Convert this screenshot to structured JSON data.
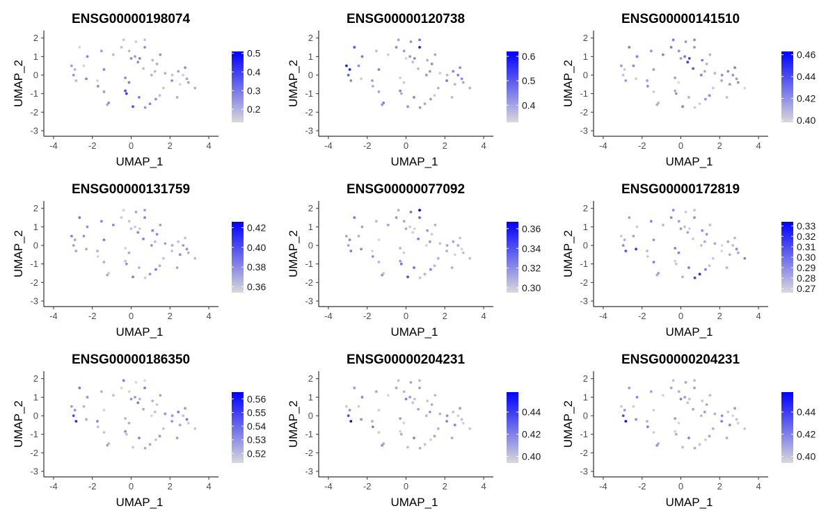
{
  "colors": {
    "low": "#d9d9d9",
    "high": "#0000ff"
  },
  "cells": {
    "x": [
      -1.53,
      -1.4,
      -0.5,
      0.25,
      0.7,
      1.5,
      -0.39,
      -0.1,
      0.7,
      -0.92,
      0.2,
      0.0,
      0.44,
      1.33,
      1.23,
      1.75,
      1.05,
      2.43,
      2.12,
      2.78,
      2.68,
      2.1,
      2.52,
      0.63,
      3.29,
      2.87,
      2.95,
      -3.07,
      -2.97,
      -2.84,
      -2.26,
      -2.66,
      -2.44,
      -2.9,
      -2.31,
      -1.74,
      -1.71,
      -1.4,
      -1.16,
      1.1,
      0.35,
      -0.3,
      -0.11,
      -0.3,
      -0.24,
      0.41,
      1.27,
      0.97,
      0.09,
      -1.23,
      0.72,
      1.47,
      1.66,
      2.37
    ],
    "y": [
      1.3,
      0.3,
      1.5,
      1.8,
      1.9,
      1.1,
      1.9,
      1.3,
      1.5,
      1.1,
      1.0,
      0.9,
      0.9,
      0.6,
      0.2,
      0.1,
      0.0,
      0.2,
      0.0,
      0.4,
      0.0,
      -0.3,
      -0.5,
      0.35,
      -0.7,
      -0.2,
      -0.4,
      0.5,
      0.0,
      -0.3,
      1.0,
      1.5,
      0.5,
      0.3,
      -0.2,
      -0.3,
      -0.6,
      -0.9,
      -1.5,
      0.8,
      0.7,
      -0.15,
      -0.4,
      -0.85,
      -1.0,
      -1.2,
      -1.3,
      -1.55,
      -1.7,
      -1.6,
      -1.75,
      -1.1,
      -0.7,
      -1.2
    ],
    "n_cells": 54
  },
  "panels": [
    {
      "title": "ENSG00000198074",
      "xlabel": "UMAP_1",
      "ylabel": "UMAP_2",
      "xlim": [
        -4.5,
        4.5
      ],
      "ylim": [
        -3.3,
        2.4
      ],
      "xticks": [
        "-4",
        "-2",
        "0",
        "2",
        "4"
      ],
      "yticks": [
        "2",
        "1",
        "0",
        "-1",
        "-2",
        "-3"
      ],
      "legend_min": 0.13,
      "legend_max": 0.51,
      "legend_ticks": [
        "0.5",
        "0.4",
        "0.3",
        "0.2"
      ],
      "seed": 11,
      "hotspots": [
        [
          0.0,
          -0.9
        ],
        [
          -0.2,
          -1.6
        ]
      ]
    },
    {
      "title": "ENSG00000120738",
      "xlabel": "UMAP_1",
      "ylabel": "UMAP_2",
      "xlim": [
        -4.5,
        4.5
      ],
      "ylim": [
        -3.3,
        2.4
      ],
      "xticks": [
        "-4",
        "-2",
        "0",
        "2",
        "4"
      ],
      "yticks": [
        "2",
        "1",
        "0",
        "-1",
        "-2",
        "-3"
      ],
      "legend_min": 0.33,
      "legend_max": 0.62,
      "legend_ticks": [
        "0.6",
        "0.5",
        "0.4"
      ],
      "seed": 23,
      "hotspots": [
        [
          -2.3,
          1.5
        ],
        [
          0.7,
          1.4
        ],
        [
          -3.0,
          0.4
        ]
      ]
    },
    {
      "title": "ENSG00000141510",
      "xlabel": "UMAP_1",
      "ylabel": "UMAP_2",
      "xlim": [
        -4.5,
        4.5
      ],
      "ylim": [
        -3.3,
        2.4
      ],
      "xticks": [
        "-4",
        "-2",
        "0",
        "2",
        "4"
      ],
      "yticks": [
        "2",
        "1",
        "0",
        "-1",
        "-2",
        "-3"
      ],
      "legend_min": 0.398,
      "legend_max": 0.463,
      "legend_ticks": [
        "0.46",
        "0.44",
        "0.42",
        "0.40"
      ],
      "seed": 37,
      "hotspots": [
        [
          0.6,
          0.7
        ]
      ]
    },
    {
      "title": "ENSG00000131759",
      "xlabel": "UMAP_1",
      "ylabel": "UMAP_2",
      "xlim": [
        -4.5,
        4.5
      ],
      "ylim": [
        -3.3,
        2.4
      ],
      "xticks": [
        "-4",
        "-2",
        "0",
        "2",
        "4"
      ],
      "yticks": [
        "2",
        "1",
        "0",
        "-1",
        "-2",
        "-3"
      ],
      "legend_min": 0.354,
      "legend_max": 0.426,
      "legend_ticks": [
        "0.42",
        "0.40",
        "0.38",
        "0.36"
      ],
      "seed": 41,
      "hotspots": [
        [
          -2.9,
          1.0
        ],
        [
          -2.2,
          1.6
        ]
      ]
    },
    {
      "title": "ENSG00000077092",
      "xlabel": "UMAP_1",
      "ylabel": "UMAP_2",
      "xlim": [
        -4.5,
        4.5
      ],
      "ylim": [
        -3.3,
        2.4
      ],
      "xticks": [
        "-4",
        "-2",
        "0",
        "2",
        "4"
      ],
      "yticks": [
        "2",
        "1",
        "0",
        "-1",
        "-2",
        "-3"
      ],
      "legend_min": 0.295,
      "legend_max": 0.367,
      "legend_ticks": [
        "0.36",
        "0.34",
        "0.32",
        "0.30"
      ],
      "seed": 53,
      "hotspots": [
        [
          0.0,
          -1.4
        ],
        [
          0.7,
          1.9
        ]
      ]
    },
    {
      "title": "ENSG00000172819",
      "xlabel": "UMAP_1",
      "ylabel": "UMAP_2",
      "xlim": [
        -4.5,
        4.5
      ],
      "ylim": [
        -3.3,
        2.4
      ],
      "xticks": [
        "-4",
        "-2",
        "0",
        "2",
        "4"
      ],
      "yticks": [
        "2",
        "1",
        "0",
        "-1",
        "-2",
        "-3"
      ],
      "legend_min": 0.266,
      "legend_max": 0.334,
      "legend_ticks": [
        "0.33",
        "0.32",
        "0.31",
        "0.30",
        "0.29",
        "0.28",
        "0.27"
      ],
      "seed": 67,
      "hotspots": [
        [
          0.8,
          -1.5
        ],
        [
          -2.5,
          -0.3
        ]
      ]
    },
    {
      "title": "ENSG00000186350",
      "xlabel": "UMAP_1",
      "ylabel": "UMAP_2",
      "xlim": [
        -4.5,
        4.5
      ],
      "ylim": [
        -3.3,
        2.4
      ],
      "xticks": [
        "-4",
        "-2",
        "0",
        "2",
        "4"
      ],
      "yticks": [
        "2",
        "1",
        "0",
        "-1",
        "-2",
        "-3"
      ],
      "legend_min": 0.513,
      "legend_max": 0.565,
      "legend_ticks": [
        "0.56",
        "0.55",
        "0.54",
        "0.53",
        "0.52"
      ],
      "seed": 71,
      "hotspots": [
        [
          -3.0,
          -0.3
        ],
        [
          -2.2,
          1.6
        ]
      ]
    },
    {
      "title": "ENSG00000204231",
      "xlabel": "UMAP_1",
      "ylabel": "UMAP_2",
      "xlim": [
        -4.5,
        4.5
      ],
      "ylim": [
        -3.3,
        2.4
      ],
      "xticks": [
        "-4",
        "-2",
        "0",
        "2",
        "4"
      ],
      "yticks": [
        "2",
        "1",
        "0",
        "-1",
        "-2",
        "-3"
      ],
      "legend_min": 0.394,
      "legend_max": 0.458,
      "legend_ticks": [
        "0.44",
        "0.42",
        "0.40"
      ],
      "seed": 83,
      "hotspots": [
        [
          -2.3,
          -0.9
        ],
        [
          -2.9,
          -0.3
        ]
      ]
    },
    {
      "title": "ENSG00000204231",
      "xlabel": "UMAP_1",
      "ylabel": "UMAP_2",
      "xlim": [
        -4.5,
        4.5
      ],
      "ylim": [
        -3.3,
        2.4
      ],
      "xticks": [
        "-4",
        "-2",
        "0",
        "2",
        "4"
      ],
      "yticks": [
        "2",
        "1",
        "0",
        "-1",
        "-2",
        "-3"
      ],
      "legend_min": 0.394,
      "legend_max": 0.458,
      "legend_ticks": [
        "0.44",
        "0.42",
        "0.40"
      ],
      "seed": 83,
      "hotspots": [
        [
          -2.3,
          -0.9
        ],
        [
          -2.9,
          -0.3
        ]
      ]
    }
  ],
  "chart_data": [
    {
      "type": "scatter",
      "title": "ENSG00000198074",
      "xlabel": "UMAP_1",
      "ylabel": "UMAP_2",
      "xlim": [
        -4.5,
        4.5
      ],
      "ylim": [
        -3.3,
        2.4
      ],
      "color_scale": [
        0.13,
        0.51
      ],
      "legend_ticks": [
        0.5,
        0.4,
        0.3,
        0.2
      ]
    },
    {
      "type": "scatter",
      "title": "ENSG00000120738",
      "xlabel": "UMAP_1",
      "ylabel": "UMAP_2",
      "xlim": [
        -4.5,
        4.5
      ],
      "ylim": [
        -3.3,
        2.4
      ],
      "color_scale": [
        0.33,
        0.62
      ],
      "legend_ticks": [
        0.6,
        0.5,
        0.4
      ]
    },
    {
      "type": "scatter",
      "title": "ENSG00000141510",
      "xlabel": "UMAP_1",
      "ylabel": "UMAP_2",
      "xlim": [
        -4.5,
        4.5
      ],
      "ylim": [
        -3.3,
        2.4
      ],
      "color_scale": [
        0.398,
        0.463
      ],
      "legend_ticks": [
        0.46,
        0.44,
        0.42,
        0.4
      ]
    },
    {
      "type": "scatter",
      "title": "ENSG00000131759",
      "xlabel": "UMAP_1",
      "ylabel": "UMAP_2",
      "xlim": [
        -4.5,
        4.5
      ],
      "ylim": [
        -3.3,
        2.4
      ],
      "color_scale": [
        0.354,
        0.426
      ],
      "legend_ticks": [
        0.42,
        0.4,
        0.38,
        0.36
      ]
    },
    {
      "type": "scatter",
      "title": "ENSG00000077092",
      "xlabel": "UMAP_1",
      "ylabel": "UMAP_2",
      "xlim": [
        -4.5,
        4.5
      ],
      "ylim": [
        -3.3,
        2.4
      ],
      "color_scale": [
        0.295,
        0.367
      ],
      "legend_ticks": [
        0.36,
        0.34,
        0.32,
        0.3
      ]
    },
    {
      "type": "scatter",
      "title": "ENSG00000172819",
      "xlabel": "UMAP_1",
      "ylabel": "UMAP_2",
      "xlim": [
        -4.5,
        4.5
      ],
      "ylim": [
        -3.3,
        2.4
      ],
      "color_scale": [
        0.266,
        0.334
      ],
      "legend_ticks": [
        0.33,
        0.32,
        0.31,
        0.3,
        0.29,
        0.28,
        0.27
      ]
    },
    {
      "type": "scatter",
      "title": "ENSG00000186350",
      "xlabel": "UMAP_1",
      "ylabel": "UMAP_2",
      "xlim": [
        -4.5,
        4.5
      ],
      "ylim": [
        -3.3,
        2.4
      ],
      "color_scale": [
        0.513,
        0.565
      ],
      "legend_ticks": [
        0.56,
        0.55,
        0.54,
        0.53,
        0.52
      ]
    },
    {
      "type": "scatter",
      "title": "ENSG00000204231",
      "xlabel": "UMAP_1",
      "ylabel": "UMAP_2",
      "xlim": [
        -4.5,
        4.5
      ],
      "ylim": [
        -3.3,
        2.4
      ],
      "color_scale": [
        0.394,
        0.458
      ],
      "legend_ticks": [
        0.44,
        0.42,
        0.4
      ]
    },
    {
      "type": "scatter",
      "title": "ENSG00000204231",
      "xlabel": "UMAP_1",
      "ylabel": "UMAP_2",
      "xlim": [
        -4.5,
        4.5
      ],
      "ylim": [
        -3.3,
        2.4
      ],
      "color_scale": [
        0.394,
        0.458
      ],
      "legend_ticks": [
        0.44,
        0.42,
        0.4
      ]
    }
  ]
}
